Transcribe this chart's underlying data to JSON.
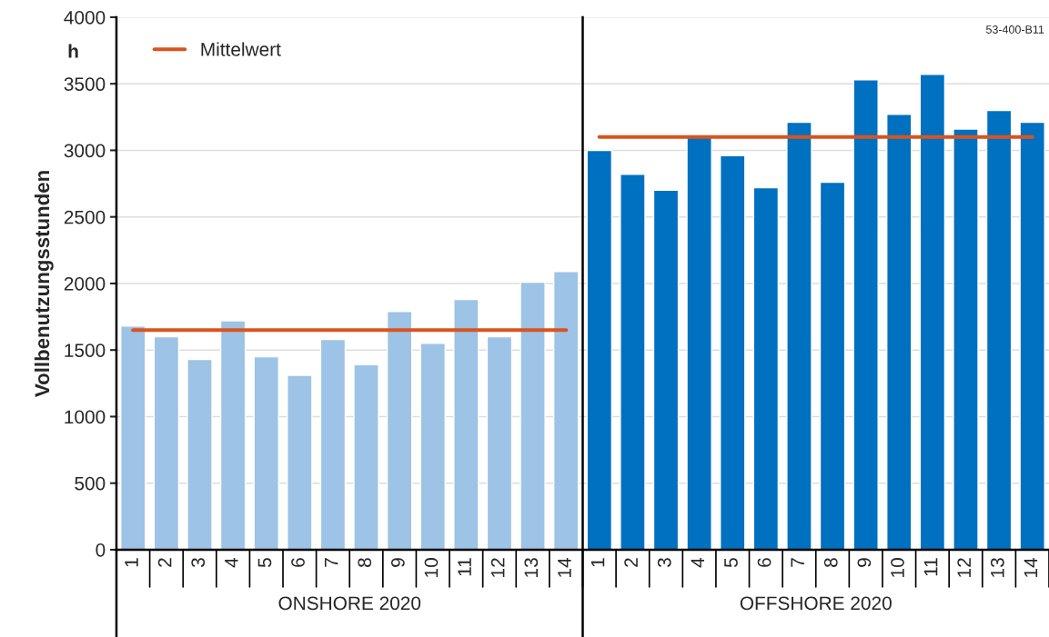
{
  "chart_data": [
    {
      "type": "bar",
      "ylabel": "Vollbenutzungsstunden",
      "xlabel": "ONSHORE 2020",
      "categories": [
        "1",
        "2",
        "3",
        "4",
        "5",
        "6",
        "7",
        "8",
        "9",
        "10",
        "11",
        "12",
        "13",
        "14"
      ],
      "series": [
        {
          "color": "#9dc3e6",
          "values": [
            1680,
            1600,
            1430,
            1720,
            1450,
            1310,
            1580,
            1390,
            1790,
            1550,
            1880,
            1600,
            2010,
            2090
          ]
        },
        {
          "type": "line",
          "name": "Mittelwert",
          "color": "#d9541e",
          "values": [
            1650,
            1650,
            1650,
            1650,
            1650,
            1650,
            1650,
            1650,
            1650,
            1650,
            1650,
            1650,
            1650,
            1650
          ]
        }
      ],
      "ylim": [
        0,
        4000
      ],
      "yticks": [
        0,
        500,
        1000,
        1500,
        2000,
        2500,
        3000,
        3500,
        4000
      ],
      "grid": "y",
      "legend": "top left",
      "annotations": [
        "h"
      ]
    },
    {
      "type": "bar",
      "xlabel": "OFFSHORE 2020",
      "categories": [
        "1",
        "2",
        "3",
        "4",
        "5",
        "6",
        "7",
        "8",
        "9",
        "10",
        "11",
        "12",
        "13",
        "14"
      ],
      "series": [
        {
          "color": "#0070c0",
          "values": [
            3000,
            2820,
            2700,
            3100,
            2960,
            2720,
            3210,
            2760,
            3530,
            3270,
            3570,
            3160,
            3300,
            3210
          ]
        },
        {
          "type": "line",
          "color": "#d9541e",
          "values": [
            3100,
            3100,
            3100,
            3100,
            3100,
            3100,
            3100,
            3100,
            3100,
            3100,
            3100,
            3100,
            3100,
            3100
          ]
        }
      ],
      "ylim": [
        0,
        4000
      ],
      "yticks": [
        0,
        500,
        1000,
        1500,
        2000,
        2500,
        3000,
        3500,
        4000
      ],
      "grid": "y",
      "tick_labels": "x",
      "annotations": [
        "53-400-B11"
      ]
    }
  ]
}
